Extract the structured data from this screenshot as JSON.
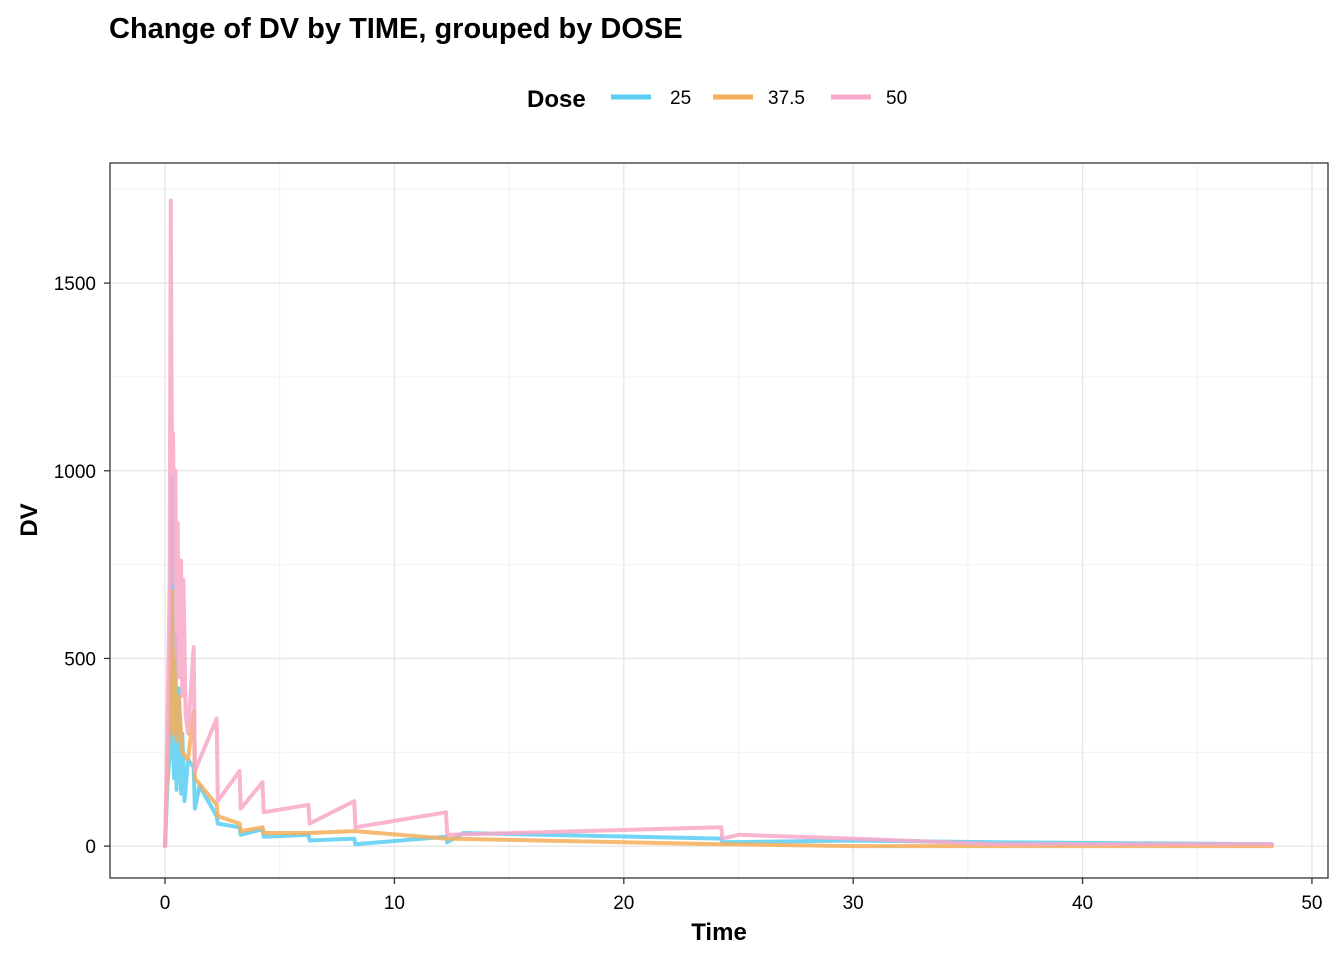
{
  "chart_data": {
    "type": "line",
    "title": "Change of DV by TIME, grouped by DOSE",
    "xlabel": "Time",
    "ylabel": "DV",
    "xlim": [
      -2.4,
      50.7
    ],
    "ylim": [
      -85,
      1820
    ],
    "x_ticks": [
      0,
      10,
      20,
      30,
      40,
      50
    ],
    "y_ticks": [
      0,
      500,
      1000,
      1500
    ],
    "x_tick_labels": [
      "0",
      "10",
      "20",
      "30",
      "40",
      "50"
    ],
    "y_tick_labels": [
      "0",
      "500",
      "1000",
      "1500"
    ],
    "grid": true,
    "legend": {
      "title": "Dose",
      "position": "top"
    },
    "series": [
      {
        "name": "25",
        "color": "#5BCEF2",
        "points": [
          [
            0,
            0
          ],
          [
            0.1,
            160
          ],
          [
            0.2,
            240
          ],
          [
            0.25,
            340
          ],
          [
            0.3,
            980
          ],
          [
            0.35,
            250
          ],
          [
            0.4,
            180
          ],
          [
            0.45,
            560
          ],
          [
            0.5,
            150
          ],
          [
            0.6,
            420
          ],
          [
            0.7,
            140
          ],
          [
            0.75,
            300
          ],
          [
            0.85,
            120
          ],
          [
            1.0,
            230
          ],
          [
            1.25,
            210
          ],
          [
            1.3,
            100
          ],
          [
            1.5,
            160
          ],
          [
            2.25,
            80
          ],
          [
            2.3,
            60
          ],
          [
            3.25,
            50
          ],
          [
            3.3,
            30
          ],
          [
            4.25,
            45
          ],
          [
            4.3,
            25
          ],
          [
            6.25,
            30
          ],
          [
            6.3,
            15
          ],
          [
            8.25,
            20
          ],
          [
            8.3,
            5
          ],
          [
            12.25,
            25
          ],
          [
            12.3,
            10
          ],
          [
            13,
            35
          ],
          [
            24.25,
            20
          ],
          [
            24.3,
            10
          ],
          [
            30,
            15
          ],
          [
            36.25,
            10
          ],
          [
            48.25,
            5
          ]
        ]
      },
      {
        "name": "37.5",
        "color": "#F5AE5A",
        "points": [
          [
            0,
            0
          ],
          [
            0.1,
            220
          ],
          [
            0.2,
            350
          ],
          [
            0.25,
            600
          ],
          [
            0.3,
            680
          ],
          [
            0.35,
            300
          ],
          [
            0.4,
            520
          ],
          [
            0.5,
            280
          ],
          [
            0.6,
            400
          ],
          [
            0.75,
            250
          ],
          [
            1.0,
            230
          ],
          [
            1.25,
            360
          ],
          [
            1.3,
            180
          ],
          [
            2.25,
            110
          ],
          [
            2.3,
            80
          ],
          [
            3.25,
            60
          ],
          [
            3.3,
            40
          ],
          [
            4.25,
            50
          ],
          [
            4.3,
            35
          ],
          [
            6.25,
            35
          ],
          [
            8.25,
            40
          ],
          [
            12.25,
            20
          ],
          [
            24.25,
            5
          ],
          [
            30,
            0
          ],
          [
            36.25,
            0
          ],
          [
            48.25,
            0
          ]
        ]
      },
      {
        "name": "50",
        "color": "#F8A8C8",
        "points": [
          [
            0,
            0
          ],
          [
            0.1,
            300
          ],
          [
            0.2,
            700
          ],
          [
            0.25,
            1720
          ],
          [
            0.28,
            1250
          ],
          [
            0.32,
            900
          ],
          [
            0.35,
            1100
          ],
          [
            0.4,
            700
          ],
          [
            0.45,
            1000
          ],
          [
            0.5,
            500
          ],
          [
            0.55,
            860
          ],
          [
            0.6,
            450
          ],
          [
            0.7,
            760
          ],
          [
            0.75,
            400
          ],
          [
            0.8,
            710
          ],
          [
            0.9,
            350
          ],
          [
            1.0,
            300
          ],
          [
            1.25,
            530
          ],
          [
            1.3,
            200
          ],
          [
            2.25,
            340
          ],
          [
            2.3,
            120
          ],
          [
            3.25,
            200
          ],
          [
            3.3,
            100
          ],
          [
            4.25,
            170
          ],
          [
            4.3,
            90
          ],
          [
            6.25,
            110
          ],
          [
            6.3,
            60
          ],
          [
            8.25,
            120
          ],
          [
            8.3,
            50
          ],
          [
            12.25,
            90
          ],
          [
            12.3,
            30
          ],
          [
            24.25,
            50
          ],
          [
            24.3,
            20
          ],
          [
            25,
            30
          ],
          [
            30,
            20
          ],
          [
            36.25,
            5
          ],
          [
            48.25,
            5
          ]
        ]
      }
    ]
  }
}
